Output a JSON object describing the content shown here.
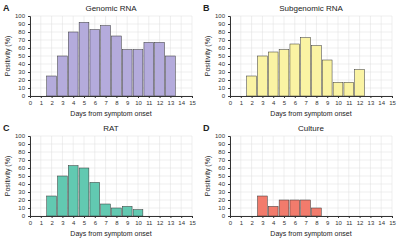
{
  "chart_data": [
    {
      "type": "bar",
      "title": "Genomic RNA",
      "annotations": [
        "A"
      ],
      "x_label": "Days from symptom onset",
      "y_label": "Positivity (%)",
      "x": [
        2,
        3,
        4,
        5,
        6,
        7,
        8,
        9,
        10,
        11,
        12,
        13
      ],
      "values": [
        25,
        50,
        80,
        92,
        83,
        88,
        75,
        58,
        58,
        67,
        67,
        50
      ],
      "color": "#b4abdc",
      "xlim": [
        0,
        15
      ],
      "xticks": [
        0,
        1,
        2,
        3,
        4,
        5,
        6,
        7,
        8,
        9,
        10,
        11,
        12,
        13,
        14,
        15
      ],
      "ylim": [
        0,
        100
      ],
      "yticks": [
        0,
        10,
        20,
        30,
        40,
        50,
        60,
        70,
        80,
        90,
        100
      ],
      "grid": true
    },
    {
      "type": "bar",
      "title": "Subgenomic RNA",
      "annotations": [
        "B"
      ],
      "x_label": "Days from symptom onset",
      "y_label": "Positivity (%)",
      "x": [
        2,
        3,
        4,
        5,
        6,
        7,
        8,
        9,
        10,
        11,
        12
      ],
      "values": [
        25,
        50,
        55,
        58,
        65,
        73,
        63,
        45,
        17,
        17,
        33
      ],
      "color": "#faf3a3",
      "xlim": [
        0,
        15
      ],
      "xticks": [
        0,
        1,
        2,
        3,
        4,
        5,
        6,
        7,
        8,
        9,
        10,
        11,
        12,
        13,
        14,
        15
      ],
      "ylim": [
        0,
        100
      ],
      "yticks": [
        0,
        10,
        20,
        30,
        40,
        50,
        60,
        70,
        80,
        90,
        100
      ],
      "grid": true
    },
    {
      "type": "bar",
      "title": "RAT",
      "annotations": [
        "C"
      ],
      "x_label": "Days from symptom onset",
      "y_label": "Positivity (%)",
      "x": [
        2,
        3,
        4,
        5,
        6,
        7,
        8,
        9,
        10
      ],
      "values": [
        25,
        50,
        63,
        60,
        42,
        15,
        10,
        12,
        8
      ],
      "color": "#62c9b1",
      "xlim": [
        0,
        15
      ],
      "xticks": [
        0,
        1,
        2,
        3,
        4,
        5,
        6,
        7,
        8,
        9,
        10,
        11,
        12,
        13,
        14,
        15
      ],
      "ylim": [
        0,
        100
      ],
      "yticks": [
        0,
        10,
        20,
        30,
        40,
        50,
        60,
        70,
        80,
        90,
        100
      ],
      "grid": true
    },
    {
      "type": "bar",
      "title": "Culture",
      "annotations": [
        "D"
      ],
      "x_label": "Days from symptom onset",
      "y_label": "Positivity (%)",
      "x": [
        3,
        4,
        5,
        6,
        7,
        8
      ],
      "values": [
        25,
        12,
        20,
        20,
        20,
        10
      ],
      "color": "#f27b6c",
      "xlim": [
        0,
        15
      ],
      "xticks": [
        0,
        1,
        2,
        3,
        4,
        5,
        6,
        7,
        8,
        9,
        10,
        11,
        12,
        13,
        14,
        15
      ],
      "ylim": [
        0,
        100
      ],
      "yticks": [
        0,
        10,
        20,
        30,
        40,
        50,
        60,
        70,
        80,
        90,
        100
      ],
      "grid": true
    }
  ]
}
